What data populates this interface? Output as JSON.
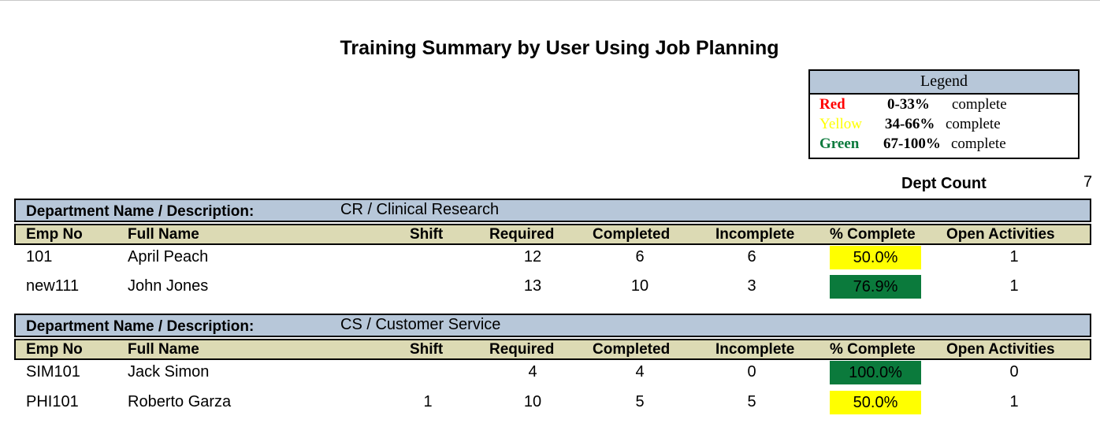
{
  "report_title": "Training Summary by User Using Job Planning",
  "legend": {
    "title": "Legend",
    "rows": [
      {
        "color_name": "Red",
        "color": "#ff0000",
        "range": "0-33%",
        "label": "complete"
      },
      {
        "color_name": "Yellow",
        "color": "#ffff00",
        "range": "34-66%",
        "label": "complete"
      },
      {
        "color_name": "Green",
        "color": "#0b7a3c",
        "range": "67-100%",
        "label": "complete"
      }
    ]
  },
  "dept_count": {
    "label": "Dept Count",
    "value": "7"
  },
  "dept_label": "Department Name / Description:",
  "columns": {
    "emp_no": "Emp No",
    "full_name": "Full Name",
    "shift": "Shift",
    "required": "Required",
    "completed": "Completed",
    "incomplete": "Incomplete",
    "pct_complete": "% Complete",
    "open_activities": "Open Activities"
  },
  "departments": [
    {
      "name": "CR / Clinical Research",
      "rows": [
        {
          "emp_no": "101",
          "full_name": "April Peach",
          "shift": "",
          "required": "12",
          "completed": "6",
          "incomplete": "6",
          "pct_complete": "50.0%",
          "status_color": "#ffff00",
          "open_activities": "1"
        },
        {
          "emp_no": "new111",
          "full_name": "John Jones",
          "shift": "",
          "required": "13",
          "completed": "10",
          "incomplete": "3",
          "pct_complete": "76.9%",
          "status_color": "#0b7a3c",
          "open_activities": "1"
        }
      ]
    },
    {
      "name": "CS / Customer Service",
      "rows": [
        {
          "emp_no": "SIM101",
          "full_name": "Jack Simon",
          "shift": "",
          "required": "4",
          "completed": "4",
          "incomplete": "0",
          "pct_complete": "100.0%",
          "status_color": "#0b7a3c",
          "open_activities": "0"
        },
        {
          "emp_no": "PHI101",
          "full_name": "Roberto Garza",
          "shift": "1",
          "required": "10",
          "completed": "5",
          "incomplete": "5",
          "pct_complete": "50.0%",
          "status_color": "#ffff00",
          "open_activities": "1"
        }
      ]
    }
  ]
}
